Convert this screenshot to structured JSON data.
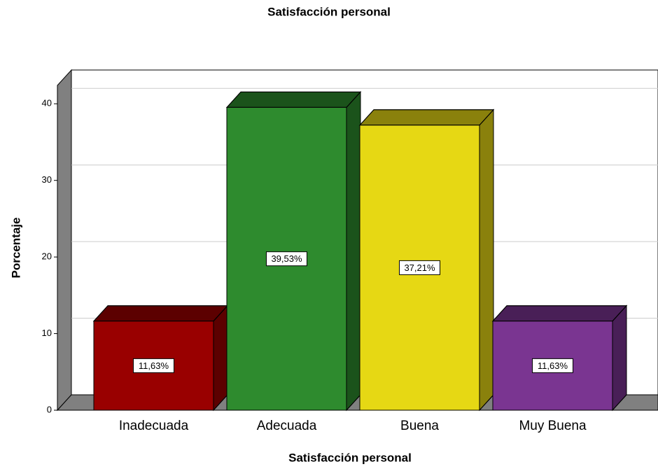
{
  "chart_data": {
    "type": "bar3d",
    "title": "Satisfacción personal",
    "x_label": "Satisfacción personal",
    "y_label": "Porcentaje",
    "categories": [
      "Inadecuada",
      "Adecuada",
      "Buena",
      "Muy Buena"
    ],
    "values": [
      11.63,
      39.53,
      37.21,
      11.63
    ],
    "value_labels": [
      "11,63%",
      "39,53%",
      "37,21%",
      "11,63%"
    ],
    "colors": [
      "#990000",
      "#2e8b2e",
      "#e6d814",
      "#7a3591"
    ],
    "ylim": [
      0,
      42.4
    ],
    "yticks": [
      0,
      10,
      20,
      30,
      40
    ],
    "grid": true
  }
}
